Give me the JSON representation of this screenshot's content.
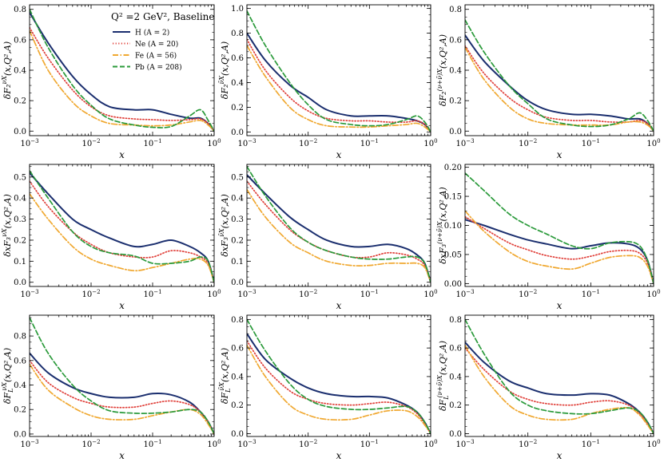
{
  "figure": {
    "legend_title": "Q² =2 GeV²,  Baseline",
    "xlabel": "x"
  },
  "series_styles": [
    {
      "name": "H (A = 2)",
      "color": "#1a2e6e",
      "dash": "solid"
    },
    {
      "name": "Ne (A = 20)",
      "color": "#e0403a",
      "dash": "dotted"
    },
    {
      "name": "Fe (A = 56)",
      "color": "#f0a830",
      "dash": "dashdot"
    },
    {
      "name": "Pb (A = 208)",
      "color": "#2a9a3a",
      "dash": "dashed"
    }
  ],
  "chart_data": [
    {
      "type": "line",
      "title": "",
      "xlabel": "x",
      "ylabel": "δF₂^{νX}(x,Q²,A)",
      "xscale": "log",
      "xlim": [
        0.001,
        1
      ],
      "ylim": [
        -0.03,
        0.83
      ],
      "yticks": [
        0.0,
        0.2,
        0.4,
        0.6,
        0.8
      ],
      "ytick_labels": [
        "0.0",
        "0.2",
        "0.4",
        "0.6",
        "0.8"
      ],
      "legend": "top-right",
      "x": [
        0.001,
        0.002,
        0.005,
        0.01,
        0.02,
        0.05,
        0.1,
        0.2,
        0.4,
        0.6,
        0.8,
        1.0
      ],
      "series": [
        {
          "name": "H (A = 2)",
          "values": [
            0.78,
            0.58,
            0.36,
            0.24,
            0.16,
            0.14,
            0.14,
            0.11,
            0.085,
            0.085,
            0.05,
            0.0
          ]
        },
        {
          "name": "Ne (A = 20)",
          "values": [
            0.68,
            0.48,
            0.27,
            0.16,
            0.1,
            0.08,
            0.075,
            0.07,
            0.075,
            0.08,
            0.05,
            0.0
          ]
        },
        {
          "name": "Fe (A = 56)",
          "values": [
            0.66,
            0.4,
            0.19,
            0.1,
            0.05,
            0.04,
            0.035,
            0.04,
            0.06,
            0.07,
            0.04,
            0.0
          ]
        },
        {
          "name": "Pb (A = 208)",
          "values": [
            0.8,
            0.55,
            0.3,
            0.17,
            0.08,
            0.04,
            0.025,
            0.03,
            0.1,
            0.14,
            0.07,
            0.0
          ]
        }
      ]
    },
    {
      "type": "line",
      "title": "",
      "xlabel": "x",
      "ylabel": "δF₂^{ν̄X}(x,Q²,A)",
      "xscale": "log",
      "xlim": [
        0.001,
        1
      ],
      "ylim": [
        -0.03,
        1.03
      ],
      "yticks": [
        0.0,
        0.2,
        0.4,
        0.6,
        0.8,
        1.0
      ],
      "ytick_labels": [
        "0.0",
        "0.2",
        "0.4",
        "0.6",
        "0.8",
        "1.0"
      ],
      "x": [
        0.001,
        0.002,
        0.005,
        0.01,
        0.02,
        0.05,
        0.1,
        0.2,
        0.4,
        0.6,
        0.8,
        1.0
      ],
      "series": [
        {
          "name": "H (A = 2)",
          "values": [
            0.8,
            0.58,
            0.38,
            0.28,
            0.18,
            0.13,
            0.13,
            0.13,
            0.11,
            0.09,
            0.06,
            0.0
          ]
        },
        {
          "name": "Ne (A = 20)",
          "values": [
            0.75,
            0.5,
            0.28,
            0.17,
            0.11,
            0.09,
            0.09,
            0.08,
            0.08,
            0.09,
            0.06,
            0.0
          ]
        },
        {
          "name": "Fe (A = 56)",
          "values": [
            0.7,
            0.45,
            0.2,
            0.1,
            0.05,
            0.04,
            0.04,
            0.05,
            0.06,
            0.07,
            0.04,
            0.0
          ]
        },
        {
          "name": "Pb (A = 208)",
          "values": [
            0.98,
            0.7,
            0.4,
            0.22,
            0.1,
            0.06,
            0.05,
            0.06,
            0.1,
            0.13,
            0.08,
            0.0
          ]
        }
      ]
    },
    {
      "type": "line",
      "title": "",
      "xlabel": "x",
      "ylabel": "δF₂^{(ν+ν̄)X}(x,Q²,A)",
      "xscale": "log",
      "xlim": [
        0.001,
        1
      ],
      "ylim": [
        -0.03,
        0.83
      ],
      "yticks": [
        0.0,
        0.2,
        0.4,
        0.6,
        0.8
      ],
      "ytick_labels": [
        "0.0",
        "0.2",
        "0.4",
        "0.6",
        "0.8"
      ],
      "x": [
        0.001,
        0.002,
        0.005,
        0.01,
        0.02,
        0.05,
        0.1,
        0.2,
        0.4,
        0.6,
        0.8,
        1.0
      ],
      "series": [
        {
          "name": "H (A = 2)",
          "values": [
            0.63,
            0.46,
            0.3,
            0.2,
            0.14,
            0.11,
            0.11,
            0.1,
            0.08,
            0.08,
            0.05,
            0.0
          ]
        },
        {
          "name": "Ne (A = 20)",
          "values": [
            0.56,
            0.38,
            0.22,
            0.14,
            0.09,
            0.07,
            0.07,
            0.06,
            0.06,
            0.07,
            0.05,
            0.0
          ]
        },
        {
          "name": "Fe (A = 56)",
          "values": [
            0.55,
            0.34,
            0.16,
            0.08,
            0.05,
            0.04,
            0.04,
            0.04,
            0.06,
            0.06,
            0.04,
            0.0
          ]
        },
        {
          "name": "Pb (A = 208)",
          "values": [
            0.73,
            0.52,
            0.3,
            0.18,
            0.08,
            0.04,
            0.03,
            0.04,
            0.08,
            0.12,
            0.07,
            0.0
          ]
        }
      ]
    },
    {
      "type": "line",
      "title": "",
      "xlabel": "x",
      "ylabel": "δxF₃^{νX}(x,Q²,A)",
      "xscale": "log",
      "xlim": [
        0.001,
        1
      ],
      "ylim": [
        -0.02,
        0.56
      ],
      "yticks": [
        0.0,
        0.1,
        0.2,
        0.3,
        0.4,
        0.5
      ],
      "ytick_labels": [
        "0.0",
        "0.1",
        "0.2",
        "0.3",
        "0.4",
        "0.5"
      ],
      "x": [
        0.001,
        0.002,
        0.005,
        0.01,
        0.02,
        0.05,
        0.1,
        0.2,
        0.4,
        0.6,
        0.8,
        1.0
      ],
      "series": [
        {
          "name": "H (A = 2)",
          "values": [
            0.52,
            0.42,
            0.3,
            0.25,
            0.21,
            0.17,
            0.18,
            0.2,
            0.17,
            0.14,
            0.1,
            0.0
          ]
        },
        {
          "name": "Ne (A = 20)",
          "values": [
            0.48,
            0.36,
            0.24,
            0.18,
            0.14,
            0.12,
            0.12,
            0.15,
            0.14,
            0.12,
            0.09,
            0.0
          ]
        },
        {
          "name": "Fe (A = 56)",
          "values": [
            0.42,
            0.3,
            0.17,
            0.11,
            0.08,
            0.055,
            0.07,
            0.09,
            0.11,
            0.11,
            0.08,
            0.0
          ]
        },
        {
          "name": "Pb (A = 208)",
          "values": [
            0.53,
            0.4,
            0.24,
            0.17,
            0.14,
            0.125,
            0.09,
            0.09,
            0.1,
            0.12,
            0.1,
            0.0
          ]
        }
      ]
    },
    {
      "type": "line",
      "title": "",
      "xlabel": "x",
      "ylabel": "δxF₃^{ν̄X}(x,Q²,A)",
      "xscale": "log",
      "xlim": [
        0.001,
        1
      ],
      "ylim": [
        -0.02,
        0.56
      ],
      "yticks": [
        0.0,
        0.1,
        0.2,
        0.3,
        0.4,
        0.5
      ],
      "ytick_labels": [
        "0.0",
        "0.1",
        "0.2",
        "0.3",
        "0.4",
        "0.5"
      ],
      "x": [
        0.001,
        0.002,
        0.005,
        0.01,
        0.02,
        0.05,
        0.1,
        0.2,
        0.4,
        0.6,
        0.8,
        1.0
      ],
      "series": [
        {
          "name": "H (A = 2)",
          "values": [
            0.51,
            0.42,
            0.31,
            0.25,
            0.2,
            0.17,
            0.17,
            0.18,
            0.16,
            0.13,
            0.09,
            0.0
          ]
        },
        {
          "name": "Ne (A = 20)",
          "values": [
            0.48,
            0.37,
            0.25,
            0.19,
            0.15,
            0.12,
            0.12,
            0.14,
            0.13,
            0.11,
            0.08,
            0.0
          ]
        },
        {
          "name": "Fe (A = 56)",
          "values": [
            0.44,
            0.31,
            0.19,
            0.14,
            0.1,
            0.08,
            0.08,
            0.09,
            0.09,
            0.09,
            0.07,
            0.0
          ]
        },
        {
          "name": "Pb (A = 208)",
          "values": [
            0.55,
            0.41,
            0.26,
            0.19,
            0.15,
            0.12,
            0.11,
            0.11,
            0.12,
            0.12,
            0.09,
            0.0
          ]
        }
      ]
    },
    {
      "type": "line",
      "title": "",
      "xlabel": "x",
      "ylabel": "δxF₃^{(ν+ν̄)X}(x,Q²,A)",
      "xscale": "log",
      "xlim": [
        0.001,
        1
      ],
      "ylim": [
        -0.005,
        0.205
      ],
      "yticks": [
        0.0,
        0.05,
        0.1,
        0.15,
        0.2
      ],
      "ytick_labels": [
        "0.00",
        "0.05",
        "0.10",
        "0.15",
        "0.20"
      ],
      "x": [
        0.001,
        0.002,
        0.005,
        0.01,
        0.02,
        0.05,
        0.1,
        0.2,
        0.4,
        0.6,
        0.8,
        1.0
      ],
      "series": [
        {
          "name": "H (A = 2)",
          "values": [
            0.11,
            0.1,
            0.085,
            0.075,
            0.068,
            0.06,
            0.065,
            0.07,
            0.068,
            0.06,
            0.04,
            0.0
          ]
        },
        {
          "name": "Ne (A = 20)",
          "values": [
            0.115,
            0.095,
            0.07,
            0.058,
            0.048,
            0.042,
            0.047,
            0.055,
            0.057,
            0.052,
            0.035,
            0.0
          ]
        },
        {
          "name": "Fe (A = 56)",
          "values": [
            0.125,
            0.09,
            0.055,
            0.038,
            0.03,
            0.025,
            0.035,
            0.045,
            0.048,
            0.045,
            0.03,
            0.0
          ]
        },
        {
          "name": "Pb (A = 208)",
          "values": [
            0.19,
            0.16,
            0.12,
            0.1,
            0.085,
            0.065,
            0.06,
            0.07,
            0.072,
            0.065,
            0.04,
            0.0
          ]
        }
      ]
    },
    {
      "type": "line",
      "title": "",
      "xlabel": "x",
      "ylabel": "δF_L^{νX}(x,Q²,A)",
      "xscale": "log",
      "xlim": [
        0.001,
        1
      ],
      "ylim": [
        -0.02,
        0.97
      ],
      "yticks": [
        0.0,
        0.2,
        0.4,
        0.6,
        0.8
      ],
      "ytick_labels": [
        "0.0",
        "0.2",
        "0.4",
        "0.6",
        "0.8"
      ],
      "x": [
        0.001,
        0.002,
        0.005,
        0.01,
        0.02,
        0.05,
        0.1,
        0.2,
        0.4,
        0.6,
        0.8,
        1.0
      ],
      "series": [
        {
          "name": "H (A = 2)",
          "values": [
            0.66,
            0.5,
            0.38,
            0.33,
            0.3,
            0.3,
            0.33,
            0.32,
            0.26,
            0.18,
            0.1,
            0.0
          ]
        },
        {
          "name": "Ne (A = 20)",
          "values": [
            0.6,
            0.42,
            0.3,
            0.25,
            0.22,
            0.22,
            0.25,
            0.27,
            0.24,
            0.18,
            0.1,
            0.0
          ]
        },
        {
          "name": "Fe (A = 56)",
          "values": [
            0.57,
            0.36,
            0.22,
            0.15,
            0.12,
            0.12,
            0.15,
            0.18,
            0.2,
            0.16,
            0.08,
            0.0
          ]
        },
        {
          "name": "Pb (A = 208)",
          "values": [
            0.95,
            0.66,
            0.4,
            0.27,
            0.19,
            0.17,
            0.17,
            0.18,
            0.2,
            0.18,
            0.1,
            0.0
          ]
        }
      ]
    },
    {
      "type": "line",
      "title": "",
      "xlabel": "x",
      "ylabel": "δF_L^{ν̄X}(x,Q²,A)",
      "xscale": "log",
      "xlim": [
        0.001,
        1
      ],
      "ylim": [
        -0.02,
        0.83
      ],
      "yticks": [
        0.0,
        0.2,
        0.4,
        0.6,
        0.8
      ],
      "ytick_labels": [
        "0.0",
        "0.2",
        "0.4",
        "0.6",
        "0.8"
      ],
      "x": [
        0.001,
        0.002,
        0.005,
        0.01,
        0.02,
        0.05,
        0.1,
        0.2,
        0.4,
        0.6,
        0.8,
        1.0
      ],
      "series": [
        {
          "name": "H (A = 2)",
          "values": [
            0.7,
            0.52,
            0.39,
            0.32,
            0.28,
            0.26,
            0.26,
            0.25,
            0.2,
            0.15,
            0.08,
            0.0
          ]
        },
        {
          "name": "Ne (A = 20)",
          "values": [
            0.65,
            0.46,
            0.3,
            0.24,
            0.21,
            0.2,
            0.21,
            0.22,
            0.19,
            0.14,
            0.07,
            0.0
          ]
        },
        {
          "name": "Fe (A = 56)",
          "values": [
            0.62,
            0.4,
            0.2,
            0.13,
            0.1,
            0.1,
            0.13,
            0.16,
            0.16,
            0.12,
            0.06,
            0.0
          ]
        },
        {
          "name": "Pb (A = 208)",
          "values": [
            0.8,
            0.58,
            0.35,
            0.24,
            0.19,
            0.17,
            0.17,
            0.18,
            0.19,
            0.15,
            0.08,
            0.0
          ]
        }
      ]
    },
    {
      "type": "line",
      "title": "",
      "xlabel": "x",
      "ylabel": "δF_L^{(ν+ν̄)X}(x,Q²,A)",
      "xscale": "log",
      "xlim": [
        0.001,
        1
      ],
      "ylim": [
        -0.02,
        0.83
      ],
      "yticks": [
        0.0,
        0.2,
        0.4,
        0.6,
        0.8
      ],
      "ytick_labels": [
        "0.0",
        "0.2",
        "0.4",
        "0.6",
        "0.8"
      ],
      "x": [
        0.001,
        0.002,
        0.005,
        0.01,
        0.02,
        0.05,
        0.1,
        0.2,
        0.4,
        0.6,
        0.8,
        1.0
      ],
      "series": [
        {
          "name": "H (A = 2)",
          "values": [
            0.64,
            0.5,
            0.37,
            0.32,
            0.28,
            0.27,
            0.28,
            0.27,
            0.21,
            0.15,
            0.08,
            0.0
          ]
        },
        {
          "name": "Ne (A = 20)",
          "values": [
            0.6,
            0.45,
            0.3,
            0.24,
            0.21,
            0.2,
            0.22,
            0.23,
            0.2,
            0.14,
            0.07,
            0.0
          ]
        },
        {
          "name": "Fe (A = 56)",
          "values": [
            0.62,
            0.4,
            0.2,
            0.13,
            0.1,
            0.1,
            0.14,
            0.17,
            0.18,
            0.13,
            0.06,
            0.0
          ]
        },
        {
          "name": "Pb (A = 208)",
          "values": [
            0.8,
            0.56,
            0.3,
            0.2,
            0.16,
            0.14,
            0.14,
            0.16,
            0.18,
            0.15,
            0.08,
            0.0
          ]
        }
      ]
    }
  ]
}
